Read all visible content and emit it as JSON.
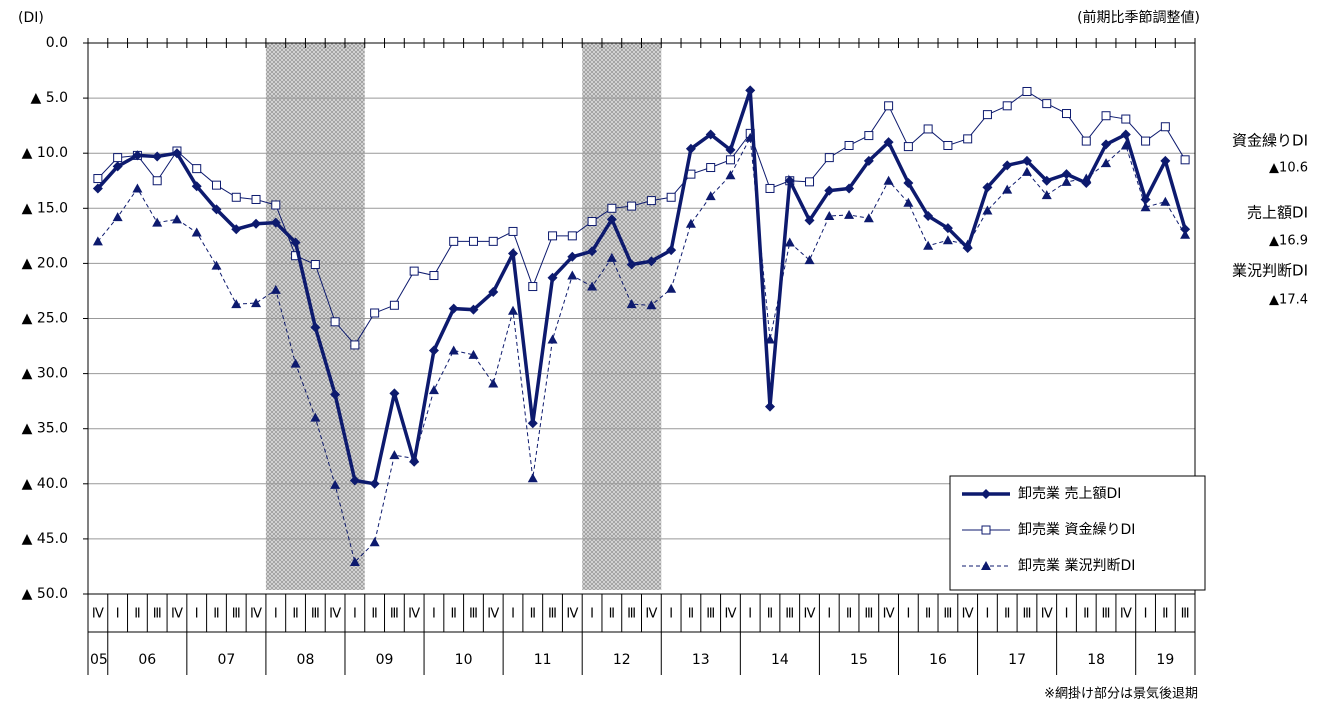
{
  "chart_data": {
    "type": "line",
    "unit_label": "(DI)",
    "note_top": "(前期比季節調整値)",
    "note_bottom": "※網掛け部分は景気後退期",
    "categories": [
      "Ⅳ",
      "Ⅰ",
      "Ⅱ",
      "Ⅲ",
      "Ⅳ",
      "Ⅰ",
      "Ⅱ",
      "Ⅲ",
      "Ⅳ",
      "Ⅰ",
      "Ⅱ",
      "Ⅲ",
      "Ⅳ",
      "Ⅰ",
      "Ⅱ",
      "Ⅲ",
      "Ⅳ",
      "Ⅰ",
      "Ⅱ",
      "Ⅲ",
      "Ⅳ",
      "Ⅰ",
      "Ⅱ",
      "Ⅲ",
      "Ⅳ",
      "Ⅰ",
      "Ⅱ",
      "Ⅲ",
      "Ⅳ",
      "Ⅰ",
      "Ⅱ",
      "Ⅲ",
      "Ⅳ",
      "Ⅰ",
      "Ⅱ",
      "Ⅲ",
      "Ⅳ",
      "Ⅰ",
      "Ⅱ",
      "Ⅲ",
      "Ⅳ",
      "Ⅰ",
      "Ⅱ",
      "Ⅲ",
      "Ⅳ",
      "Ⅰ",
      "Ⅱ",
      "Ⅲ",
      "Ⅳ",
      "Ⅰ",
      "Ⅱ",
      "Ⅲ",
      "Ⅳ",
      "Ⅰ",
      "Ⅱ",
      "Ⅲ"
    ],
    "years": [
      {
        "label": "05",
        "first": 0
      },
      {
        "label": "06",
        "first": 1
      },
      {
        "label": "07",
        "first": 5
      },
      {
        "label": "08",
        "first": 9
      },
      {
        "label": "09",
        "first": 13
      },
      {
        "label": "10",
        "first": 17
      },
      {
        "label": "11",
        "first": 21
      },
      {
        "label": "12",
        "first": 25
      },
      {
        "label": "13",
        "first": 29
      },
      {
        "label": "14",
        "first": 33
      },
      {
        "label": "15",
        "first": 37
      },
      {
        "label": "16",
        "first": 41
      },
      {
        "label": "17",
        "first": 45
      },
      {
        "label": "18",
        "first": 49
      },
      {
        "label": "19",
        "first": 53
      }
    ],
    "shaded": [
      [
        9,
        13
      ],
      [
        25,
        28
      ]
    ],
    "ylim": [
      0,
      -50
    ],
    "yticks": [
      {
        "value": 0,
        "label": "0.0"
      },
      {
        "value": -5,
        "label": "▲ 5.0"
      },
      {
        "value": -10,
        "label": "▲ 10.0"
      },
      {
        "value": -15,
        "label": "▲ 15.0"
      },
      {
        "value": -20,
        "label": "▲ 20.0"
      },
      {
        "value": -25,
        "label": "▲ 25.0"
      },
      {
        "value": -30,
        "label": "▲ 30.0"
      },
      {
        "value": -35,
        "label": "▲ 35.0"
      },
      {
        "value": -40,
        "label": "▲ 40.0"
      },
      {
        "value": -45,
        "label": "▲ 45.0"
      },
      {
        "value": -50,
        "label": "▲ 50.0"
      }
    ],
    "grid": true,
    "series": [
      {
        "name": "卸売業 売上額DI",
        "color": "#0d1a6e",
        "marker": "diamond",
        "line_style": "solid",
        "line_width": 3.5,
        "values": [
          -13.2,
          -11.2,
          -10.2,
          -10.3,
          -10.0,
          -13.0,
          -15.1,
          -16.9,
          -16.4,
          -16.3,
          -18.1,
          -25.8,
          -31.9,
          -39.7,
          -40.0,
          -31.8,
          -38.0,
          -27.9,
          -24.1,
          -24.2,
          -22.6,
          -19.1,
          -34.5,
          -21.3,
          -19.4,
          -18.9,
          -16.0,
          -20.1,
          -19.8,
          -18.8,
          -9.6,
          -8.3,
          -9.7,
          -4.3,
          -33.0,
          -12.5,
          -16.1,
          -13.4,
          -13.2,
          -10.7,
          -9.0,
          -12.7,
          -15.7,
          -16.8,
          -18.6,
          -13.1,
          -11.1,
          -10.7,
          -12.5,
          -11.9,
          -12.7,
          -9.2,
          -8.3,
          -14.2,
          -10.7,
          -16.9
        ]
      },
      {
        "name": "卸売業 資金繰りDI",
        "color": "#0d1a6e",
        "marker": "square",
        "line_style": "solid",
        "line_width": 1,
        "values": [
          -12.3,
          -10.4,
          -10.2,
          -12.5,
          -9.8,
          -11.4,
          -12.9,
          -14.0,
          -14.2,
          -14.7,
          -19.3,
          -20.1,
          -25.3,
          -27.4,
          -24.5,
          -23.8,
          -20.7,
          -21.1,
          -18.0,
          -18.0,
          -18.0,
          -17.1,
          -22.1,
          -17.5,
          -17.5,
          -16.2,
          -15.0,
          -14.8,
          -14.3,
          -14.0,
          -11.9,
          -11.3,
          -10.6,
          -8.2,
          -13.2,
          -12.5,
          -12.6,
          -10.4,
          -9.3,
          -8.4,
          -5.7,
          -9.4,
          -7.8,
          -9.3,
          -8.7,
          -6.5,
          -5.7,
          -4.4,
          -5.5,
          -6.4,
          -8.9,
          -6.6,
          -6.9,
          -8.9,
          -7.6,
          -10.6
        ]
      },
      {
        "name": "卸売業 業況判断DI",
        "color": "#0d1a6e",
        "marker": "triangle",
        "line_style": "dashed",
        "line_width": 1,
        "values": [
          -18.0,
          -15.8,
          -13.2,
          -16.3,
          -16.0,
          -17.2,
          -20.2,
          -23.7,
          -23.6,
          -22.4,
          -29.1,
          -34.0,
          -40.1,
          -47.1,
          -45.3,
          -37.4,
          -37.7,
          -31.5,
          -27.9,
          -28.3,
          -30.9,
          -24.3,
          -39.5,
          -26.9,
          -21.1,
          -22.1,
          -19.5,
          -23.7,
          -23.8,
          -22.3,
          -16.4,
          -13.9,
          -12.0,
          -8.6,
          -26.9,
          -18.1,
          -19.7,
          -15.7,
          -15.6,
          -15.9,
          -12.5,
          -14.5,
          -18.4,
          -17.9,
          -18.3,
          -15.2,
          -13.3,
          -11.7,
          -13.8,
          -12.6,
          -12.3,
          -10.9,
          -9.3,
          -14.9,
          -14.4,
          -17.4
        ]
      }
    ],
    "annotations": [
      "資金繰りDI",
      "▲10.6",
      "売上額DI",
      "▲16.9",
      "業況判断DI",
      "▲17.4"
    ]
  }
}
